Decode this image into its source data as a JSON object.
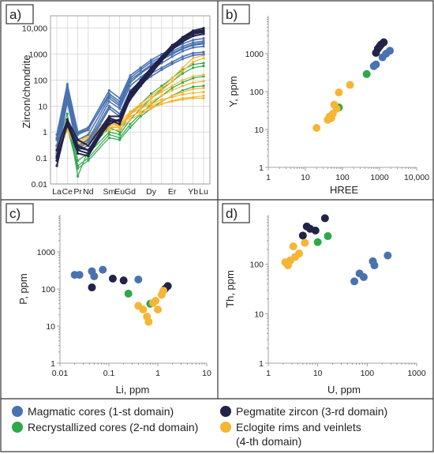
{
  "colors": {
    "magmatic": "#4a72b0",
    "recrystallized": "#2ea84a",
    "pegmatite": "#22224a",
    "eclogite": "#f4b634",
    "frame": "#333333"
  },
  "legend": [
    {
      "key": "magmatic",
      "label": "Magmatic cores (1-st domain)"
    },
    {
      "key": "pegmatite",
      "label": "Pegmatite zircon (3-rd domain)"
    },
    {
      "key": "recrystallized",
      "label": "Recrystallized cores (2-nd domain)"
    },
    {
      "key": "eclogite",
      "label": "Eclogite rims and veinlets",
      "label2": "(4-th domain)"
    }
  ],
  "chart_data": [
    {
      "id": "a",
      "panel_label": "a)",
      "type": "line",
      "ylabel": "Zircon/chondrite",
      "xlabel": "",
      "yscale": "log",
      "ylim": [
        0.01,
        30000
      ],
      "yticks": [
        0.01,
        0.1,
        1,
        10,
        100,
        1000,
        10000
      ],
      "ytick_labels": [
        "0.01",
        "0.1",
        "1",
        "10",
        "100",
        "1000",
        "10,000"
      ],
      "grid": true,
      "categories": [
        "La",
        "Ce",
        "Pr",
        "Nd",
        "Sm",
        "Eu",
        "Gd",
        "Tb",
        "Dy",
        "Ho",
        "Er",
        "Tm",
        "Yb",
        "Lu"
      ],
      "category_positions": [
        0,
        1,
        2,
        3,
        5,
        6,
        7,
        8,
        9,
        10,
        11,
        12,
        13,
        14
      ],
      "shown_tick_labels": [
        "La",
        "Ce",
        "Pr",
        "Nd",
        "Sm",
        "Eu",
        "Gd",
        "",
        "Dy",
        "",
        "Er",
        "",
        "Yb",
        "Lu"
      ],
      "series": [
        {
          "group": "magmatic",
          "values": [
            0.8,
            70,
            1.0,
            1.5,
            40,
            20,
            150,
            300,
            600,
            1000,
            1600,
            2500,
            3500,
            4000
          ]
        },
        {
          "group": "magmatic",
          "values": [
            0.5,
            50,
            0.8,
            1.2,
            30,
            15,
            120,
            250,
            500,
            800,
            1300,
            2000,
            2800,
            3200
          ]
        },
        {
          "group": "magmatic",
          "values": [
            0.3,
            40,
            0.5,
            0.8,
            20,
            10,
            80,
            180,
            350,
            600,
            1000,
            1600,
            2200,
            2500
          ]
        },
        {
          "group": "magmatic",
          "values": [
            0.2,
            30,
            0.3,
            0.5,
            15,
            8,
            60,
            130,
            260,
            450,
            800,
            1300,
            1800,
            2000
          ]
        },
        {
          "group": "magmatic",
          "values": [
            0.6,
            60,
            0.9,
            1.3,
            25,
            12,
            100,
            200,
            400,
            700,
            1100,
            1700,
            2400,
            2800
          ]
        },
        {
          "group": "magmatic",
          "values": [
            0.15,
            20,
            0.25,
            0.4,
            10,
            5,
            40,
            90,
            180,
            300,
            500,
            800,
            1100,
            1200
          ]
        },
        {
          "group": "magmatic",
          "values": [
            0.1,
            15,
            0.2,
            0.3,
            8,
            4,
            30,
            70,
            140,
            250,
            420,
            650,
            900,
            1000
          ]
        },
        {
          "group": "recrystallized",
          "values": [
            0.3,
            5,
            0.02,
            0.2,
            1.5,
            1.0,
            5,
            12,
            30,
            60,
            120,
            250,
            400,
            450
          ]
        },
        {
          "group": "recrystallized",
          "values": [
            0.15,
            3,
            0.08,
            0.15,
            1.0,
            0.8,
            3,
            8,
            20,
            45,
            90,
            180,
            300,
            350
          ]
        },
        {
          "group": "recrystallized",
          "values": [
            0.1,
            2.5,
            0.05,
            0.1,
            0.8,
            0.6,
            2,
            5,
            12,
            25,
            50,
            80,
            120,
            140
          ]
        },
        {
          "group": "recrystallized",
          "values": [
            0.08,
            1.5,
            0.04,
            0.08,
            0.6,
            0.5,
            1.5,
            4,
            8,
            15,
            25,
            40,
            55,
            60
          ]
        },
        {
          "group": "pegmatite",
          "values": [
            0.05,
            2.5,
            0.3,
            0.2,
            2,
            3,
            25,
            80,
            250,
            700,
            2000,
            4500,
            8000,
            10000
          ]
        },
        {
          "group": "pegmatite",
          "values": [
            0.2,
            3,
            0.5,
            0.3,
            4,
            4,
            35,
            100,
            300,
            800,
            2200,
            4000,
            7000,
            8500
          ]
        },
        {
          "group": "pegmatite",
          "values": [
            0.1,
            2,
            0.2,
            0.15,
            3,
            2,
            20,
            70,
            200,
            600,
            1700,
            3500,
            6000,
            7000
          ]
        },
        {
          "group": "pegmatite",
          "values": [
            0.08,
            2.2,
            0.15,
            0.12,
            2.5,
            3,
            18,
            60,
            180,
            550,
            1500,
            3000,
            5000,
            6000
          ]
        },
        {
          "group": "pegmatite",
          "values": [
            0.12,
            1.8,
            0.25,
            0.2,
            3.5,
            2.5,
            30,
            90,
            280,
            750,
            1900,
            3800,
            6500,
            7500
          ]
        },
        {
          "group": "eclogite",
          "values": [
            0.3,
            3,
            0.4,
            0.8,
            3,
            2.5,
            6,
            10,
            20,
            35,
            60,
            100,
            140,
            160
          ]
        },
        {
          "group": "eclogite",
          "values": [
            0.2,
            2,
            0.3,
            0.6,
            2,
            2,
            5,
            8,
            15,
            25,
            40,
            60,
            80,
            90
          ]
        },
        {
          "group": "eclogite",
          "values": [
            0.25,
            1.5,
            0.25,
            0.5,
            1.5,
            1.5,
            4,
            6,
            10,
            15,
            25,
            35,
            45,
            50
          ]
        },
        {
          "group": "eclogite",
          "values": [
            0.15,
            2.5,
            0.35,
            0.7,
            2.5,
            2,
            5,
            8,
            12,
            18,
            22,
            28,
            32,
            35
          ]
        },
        {
          "group": "eclogite",
          "values": [
            0.1,
            1.2,
            0.2,
            0.4,
            1.2,
            1.2,
            3,
            5,
            8,
            12,
            16,
            20,
            22,
            25
          ]
        },
        {
          "group": "eclogite",
          "values": [
            0.18,
            1.8,
            0.3,
            0.5,
            2,
            1.8,
            4,
            6,
            9,
            12,
            15,
            18,
            20,
            20
          ]
        },
        {
          "group": "eclogite",
          "values": [
            0.22,
            2.2,
            0.28,
            0.6,
            2.2,
            1.6,
            6,
            12,
            25,
            50,
            120,
            300,
            700,
            900
          ]
        },
        {
          "group": "eclogite",
          "values": [
            0.12,
            1.6,
            0.22,
            0.45,
            1.8,
            1.4,
            5,
            10,
            20,
            40,
            90,
            220,
            500,
            700
          ]
        }
      ]
    },
    {
      "id": "b",
      "panel_label": "b)",
      "type": "scatter",
      "xlabel": "HREE",
      "ylabel": "Y, ppm",
      "xscale": "log",
      "yscale": "log",
      "xlim": [
        1,
        10000
      ],
      "ylim": [
        1,
        10000
      ],
      "xticks": [
        1,
        10,
        100,
        1000,
        10000
      ],
      "xtick_labels": [
        "1",
        "10",
        "100",
        "1000",
        "10,000"
      ],
      "yticks": [
        1,
        10,
        100,
        1000
      ],
      "ytick_labels": [
        "1",
        "10",
        "100",
        "1000"
      ],
      "points": [
        {
          "group": "magmatic",
          "x": 700,
          "y": 470
        },
        {
          "group": "magmatic",
          "x": 800,
          "y": 520
        },
        {
          "group": "magmatic",
          "x": 1200,
          "y": 800
        },
        {
          "group": "magmatic",
          "x": 1500,
          "y": 1000
        },
        {
          "group": "magmatic",
          "x": 1900,
          "y": 1200
        },
        {
          "group": "recrystallized",
          "x": 80,
          "y": 38
        },
        {
          "group": "recrystallized",
          "x": 450,
          "y": 290
        },
        {
          "group": "pegmatite",
          "x": 800,
          "y": 1050
        },
        {
          "group": "pegmatite",
          "x": 900,
          "y": 1350
        },
        {
          "group": "pegmatite",
          "x": 1000,
          "y": 1550
        },
        {
          "group": "pegmatite",
          "x": 1100,
          "y": 1750
        },
        {
          "group": "pegmatite",
          "x": 1300,
          "y": 2000
        },
        {
          "group": "eclogite",
          "x": 20,
          "y": 11
        },
        {
          "group": "eclogite",
          "x": 40,
          "y": 18
        },
        {
          "group": "eclogite",
          "x": 45,
          "y": 22
        },
        {
          "group": "eclogite",
          "x": 50,
          "y": 20
        },
        {
          "group": "eclogite",
          "x": 55,
          "y": 26
        },
        {
          "group": "eclogite",
          "x": 60,
          "y": 45
        },
        {
          "group": "eclogite",
          "x": 70,
          "y": 35
        },
        {
          "group": "eclogite",
          "x": 80,
          "y": 95
        },
        {
          "group": "eclogite",
          "x": 160,
          "y": 150
        }
      ]
    },
    {
      "id": "c",
      "panel_label": "c)",
      "type": "scatter",
      "xlabel": "Li, ppm",
      "ylabel": "P, ppm",
      "xscale": "log",
      "yscale": "log",
      "xlim": [
        0.01,
        10
      ],
      "ylim": [
        1,
        10000
      ],
      "xticks": [
        0.01,
        0.1,
        1,
        10
      ],
      "xtick_labels": [
        "0.01",
        "0.1",
        "1",
        "10"
      ],
      "yticks": [
        1,
        10,
        100,
        1000
      ],
      "ytick_labels": [
        "1",
        "10",
        "100",
        "1000"
      ],
      "points": [
        {
          "group": "magmatic",
          "x": 0.02,
          "y": 240
        },
        {
          "group": "magmatic",
          "x": 0.025,
          "y": 240
        },
        {
          "group": "magmatic",
          "x": 0.045,
          "y": 300
        },
        {
          "group": "magmatic",
          "x": 0.05,
          "y": 220
        },
        {
          "group": "magmatic",
          "x": 0.075,
          "y": 330
        },
        {
          "group": "magmatic",
          "x": 0.4,
          "y": 180
        },
        {
          "group": "recrystallized",
          "x": 0.25,
          "y": 75
        },
        {
          "group": "recrystallized",
          "x": 0.7,
          "y": 40
        },
        {
          "group": "pegmatite",
          "x": 0.045,
          "y": 110
        },
        {
          "group": "pegmatite",
          "x": 0.12,
          "y": 190
        },
        {
          "group": "pegmatite",
          "x": 0.2,
          "y": 170
        },
        {
          "group": "pegmatite",
          "x": 1.4,
          "y": 100
        },
        {
          "group": "pegmatite",
          "x": 1.6,
          "y": 120
        },
        {
          "group": "eclogite",
          "x": 0.4,
          "y": 35
        },
        {
          "group": "eclogite",
          "x": 0.5,
          "y": 28
        },
        {
          "group": "eclogite",
          "x": 0.6,
          "y": 18
        },
        {
          "group": "eclogite",
          "x": 0.65,
          "y": 13
        },
        {
          "group": "eclogite",
          "x": 0.8,
          "y": 42
        },
        {
          "group": "eclogite",
          "x": 1.0,
          "y": 28
        },
        {
          "group": "eclogite",
          "x": 1.2,
          "y": 70
        },
        {
          "group": "eclogite",
          "x": 1.3,
          "y": 90
        },
        {
          "group": "eclogite",
          "x": 0.9,
          "y": 48
        }
      ]
    },
    {
      "id": "d",
      "panel_label": "d)",
      "type": "scatter",
      "xlabel": "U, ppm",
      "ylabel": "Th, ppm",
      "xscale": "log",
      "yscale": "log",
      "xlim": [
        1,
        1000
      ],
      "ylim": [
        1,
        1000
      ],
      "xticks": [
        1,
        10,
        100,
        1000
      ],
      "xtick_labels": [
        "1",
        "10",
        "100",
        "1000"
      ],
      "yticks": [
        1,
        10,
        100
      ],
      "ytick_labels": [
        "1",
        "10",
        "100"
      ],
      "points": [
        {
          "group": "magmatic",
          "x": 55,
          "y": 45
        },
        {
          "group": "magmatic",
          "x": 70,
          "y": 65
        },
        {
          "group": "magmatic",
          "x": 85,
          "y": 55
        },
        {
          "group": "magmatic",
          "x": 130,
          "y": 115
        },
        {
          "group": "magmatic",
          "x": 140,
          "y": 95
        },
        {
          "group": "magmatic",
          "x": 260,
          "y": 150
        },
        {
          "group": "recrystallized",
          "x": 10,
          "y": 280
        },
        {
          "group": "recrystallized",
          "x": 16,
          "y": 370
        },
        {
          "group": "pegmatite",
          "x": 5,
          "y": 380
        },
        {
          "group": "pegmatite",
          "x": 6,
          "y": 580
        },
        {
          "group": "pegmatite",
          "x": 7,
          "y": 520
        },
        {
          "group": "pegmatite",
          "x": 9,
          "y": 480
        },
        {
          "group": "pegmatite",
          "x": 14,
          "y": 850
        },
        {
          "group": "eclogite",
          "x": 2.2,
          "y": 110
        },
        {
          "group": "eclogite",
          "x": 2.5,
          "y": 95
        },
        {
          "group": "eclogite",
          "x": 2.8,
          "y": 120
        },
        {
          "group": "eclogite",
          "x": 3.2,
          "y": 230
        },
        {
          "group": "eclogite",
          "x": 3.5,
          "y": 140
        },
        {
          "group": "eclogite",
          "x": 4.2,
          "y": 165
        },
        {
          "group": "eclogite",
          "x": 5.5,
          "y": 270
        }
      ]
    }
  ]
}
